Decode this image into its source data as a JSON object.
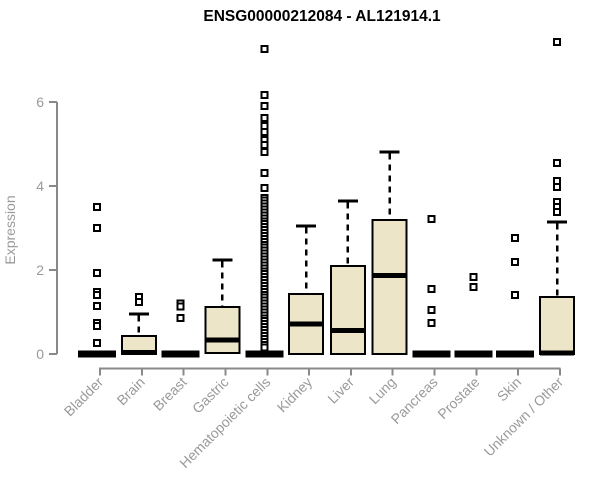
{
  "title": "ENSG00000212084 - AL121914.1",
  "colors": {
    "background": "#ffffff",
    "box_fill": "#ece5c7",
    "box_stroke": "#000000",
    "median": "#000000",
    "axis": "#898989",
    "tick_label": "#9a9a9a",
    "title_text": "#000000",
    "outlier_fill": "#ffffff"
  },
  "chart_data": {
    "type": "boxplot",
    "title": "ENSG00000212084 - AL121914.1",
    "xlabel": "",
    "ylabel": "Expression",
    "ylim": [
      0,
      6
    ],
    "y_ticks": [
      0,
      2,
      4,
      6
    ],
    "grid": false,
    "legend": false,
    "categories": [
      "Bladder",
      "Brain",
      "Breast",
      "Gastric",
      "Hematopoietic cells",
      "Kidney",
      "Liver",
      "Lung",
      "Pancreas",
      "Prostate",
      "Skin",
      "Unknown / Other"
    ],
    "series": [
      {
        "name": "Bladder",
        "q1": 0,
        "median": 0,
        "q3": 0,
        "whisker_low": 0,
        "whisker_high": 0,
        "outliers": [
          3.5,
          3.0,
          1.93,
          1.48,
          1.4,
          1.14,
          0.74,
          0.67,
          0.26
        ]
      },
      {
        "name": "Brain",
        "q1": 0,
        "median": 0.03,
        "q3": 0.43,
        "whisker_low": 0,
        "whisker_high": 0.95,
        "outliers": [
          1.36,
          1.24
        ]
      },
      {
        "name": "Breast",
        "q1": 0,
        "median": 0,
        "q3": 0,
        "whisker_low": 0,
        "whisker_high": 0,
        "outliers": [
          1.2,
          1.13,
          0.86
        ]
      },
      {
        "name": "Gastric",
        "q1": 0.02,
        "median": 0.33,
        "q3": 1.12,
        "whisker_low": 0,
        "whisker_high": 2.24,
        "outliers": []
      },
      {
        "name": "Hematopoietic cells",
        "q1": 0,
        "median": 0.02,
        "q3": 0.08,
        "whisker_low": 0,
        "whisker_high": 0.08,
        "outliers": [
          7.26,
          6.17,
          5.9,
          5.62,
          5.43,
          5.29,
          5.1,
          4.98,
          4.81,
          4.31,
          3.95,
          3.72,
          3.65,
          3.58,
          3.51,
          3.44,
          3.37,
          3.3,
          3.23,
          3.16,
          3.09,
          3.02,
          2.95,
          2.88,
          2.81,
          2.74,
          2.67,
          2.6,
          2.53,
          2.46,
          2.39,
          2.32,
          2.25,
          2.18,
          2.11,
          2.04,
          1.97,
          1.9,
          1.83,
          1.76,
          1.69,
          1.62,
          1.55,
          1.48,
          1.41,
          1.34,
          1.27,
          1.2,
          1.13,
          1.06,
          0.99,
          0.92,
          0.85,
          0.78,
          0.71,
          0.64,
          0.57,
          0.5,
          0.43,
          0.36,
          0.29,
          0.22,
          0.15
        ]
      },
      {
        "name": "Kidney",
        "q1": 0,
        "median": 0.72,
        "q3": 1.43,
        "whisker_low": 0,
        "whisker_high": 3.05,
        "outliers": []
      },
      {
        "name": "Liver",
        "q1": 0,
        "median": 0.56,
        "q3": 2.1,
        "whisker_low": 0,
        "whisker_high": 3.64,
        "outliers": []
      },
      {
        "name": "Lung",
        "q1": 0,
        "median": 1.87,
        "q3": 3.19,
        "whisker_low": 0,
        "whisker_high": 4.81,
        "outliers": []
      },
      {
        "name": "Pancreas",
        "q1": 0,
        "median": 0,
        "q3": 0,
        "whisker_low": 0,
        "whisker_high": 0,
        "outliers": [
          3.21,
          1.55,
          1.05,
          0.74
        ]
      },
      {
        "name": "Prostate",
        "q1": 0,
        "median": 0,
        "q3": 0,
        "whisker_low": 0,
        "whisker_high": 0,
        "outliers": [
          1.83,
          1.6
        ]
      },
      {
        "name": "Skin",
        "q1": 0,
        "median": 0,
        "q3": 0,
        "whisker_low": 0,
        "whisker_high": 0,
        "outliers": [
          2.76,
          2.19,
          1.4
        ]
      },
      {
        "name": "Unknown / Other",
        "q1": 0,
        "median": 0.02,
        "q3": 1.36,
        "whisker_low": 0,
        "whisker_high": 3.14,
        "outliers": [
          7.43,
          4.55,
          4.12,
          3.98,
          3.62,
          3.5,
          3.38
        ]
      }
    ]
  }
}
